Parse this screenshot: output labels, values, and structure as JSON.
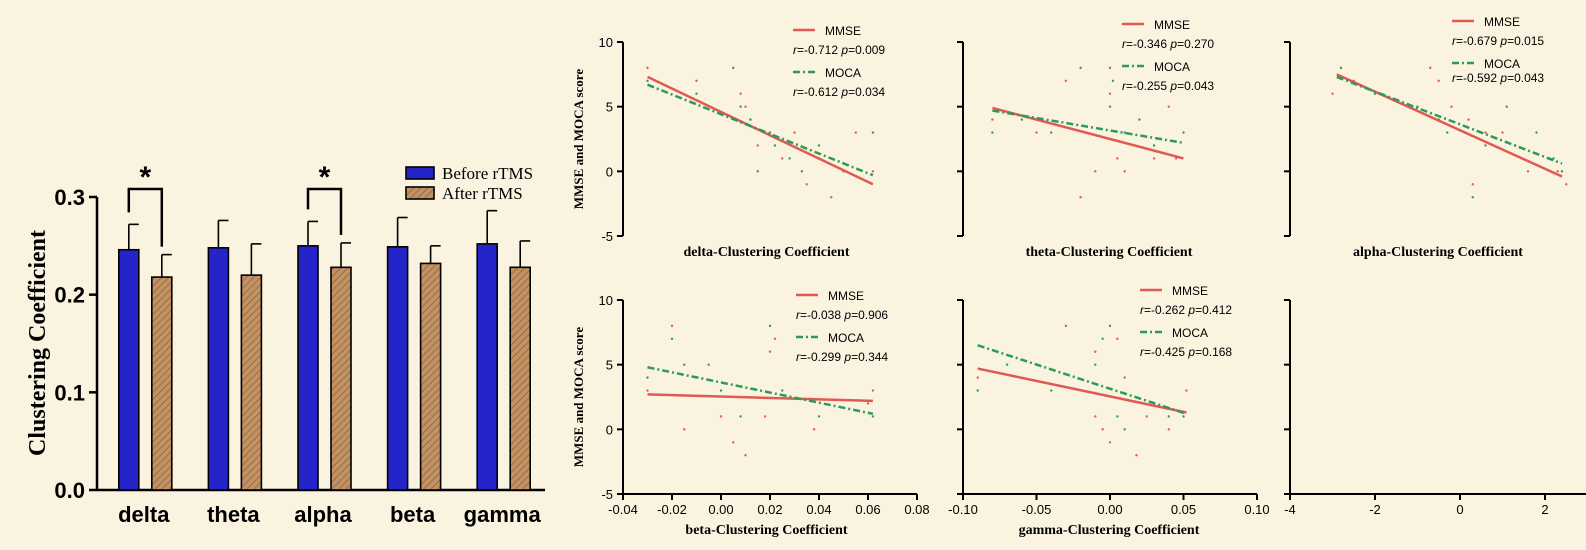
{
  "colors": {
    "background": "#faf3e0",
    "before_bar": "#2424c8",
    "after_bar": "#c8915a",
    "mmse_line": "#e05a52",
    "moca_line": "#2e9a5a",
    "axis": "#000000"
  },
  "chart_data": [
    {
      "id": "bar",
      "type": "bar",
      "categories": [
        "delta",
        "theta",
        "alpha",
        "beta",
        "gamma"
      ],
      "series": [
        {
          "name": "Before rTMS",
          "values": [
            0.246,
            0.248,
            0.25,
            0.249,
            0.252
          ],
          "errors": [
            0.026,
            0.028,
            0.025,
            0.03,
            0.034
          ]
        },
        {
          "name": "After rTMS",
          "values": [
            0.218,
            0.22,
            0.228,
            0.232,
            0.228
          ],
          "errors": [
            0.023,
            0.032,
            0.025,
            0.018,
            0.027
          ]
        }
      ],
      "ylabel": "Clustering Coefficient",
      "ylim": [
        0,
        0.3
      ],
      "yticks": [
        "0.0",
        "0.1",
        "0.2",
        "0.3"
      ],
      "significance": [
        {
          "category": "delta",
          "label": "*"
        },
        {
          "category": "alpha",
          "label": "*"
        }
      ],
      "legend_placement": "top-right"
    },
    {
      "id": "s1",
      "type": "scatter",
      "xlabel": "delta-Clustering Coefficient",
      "ylabel": "MMSE and MOCA score",
      "xlim": [
        -0.04,
        0.08
      ],
      "ylim": [
        -5,
        10
      ],
      "yticks": [
        "-5",
        "0",
        "5",
        "10"
      ],
      "xticks": [],
      "mmse": {
        "label": "MMSE",
        "r": "-0.712",
        "p": "0.009",
        "line": [
          [
            -0.03,
            7.3
          ],
          [
            0.062,
            -1.0
          ]
        ],
        "points": [
          [
            -0.03,
            8
          ],
          [
            -0.01,
            7
          ],
          [
            0.008,
            6
          ],
          [
            0.01,
            5
          ],
          [
            0.012,
            4
          ],
          [
            0.015,
            2
          ],
          [
            0.02,
            3
          ],
          [
            0.025,
            1
          ],
          [
            0.03,
            3
          ],
          [
            0.035,
            -1
          ],
          [
            0.04,
            1
          ],
          [
            0.045,
            -2
          ],
          [
            0.055,
            3
          ],
          [
            0.062,
            0
          ]
        ]
      },
      "moca": {
        "label": "MOCA",
        "r": "-0.612",
        "p": "0.034",
        "line": [
          [
            -0.03,
            6.7
          ],
          [
            0.062,
            -0.3
          ]
        ],
        "points": [
          [
            -0.03,
            7
          ],
          [
            -0.01,
            6
          ],
          [
            0.005,
            8
          ],
          [
            0.008,
            5
          ],
          [
            0.012,
            4
          ],
          [
            0.015,
            0
          ],
          [
            0.022,
            2
          ],
          [
            0.028,
            1
          ],
          [
            0.033,
            0
          ],
          [
            0.04,
            2
          ],
          [
            0.05,
            0
          ],
          [
            0.062,
            3
          ]
        ]
      },
      "legend_placement": "top-right"
    },
    {
      "id": "s2",
      "type": "scatter",
      "xlabel": "theta-Clustering Coefficient",
      "ylabel": "",
      "xlim": [
        -0.1,
        0.1
      ],
      "ylim": [
        -5,
        10
      ],
      "yticks": [],
      "xticks": [],
      "mmse": {
        "label": "MMSE",
        "r": "-0.346",
        "p": "0.270",
        "line": [
          [
            -0.08,
            4.9
          ],
          [
            0.05,
            1.0
          ]
        ],
        "points": [
          [
            -0.08,
            4
          ],
          [
            -0.05,
            3
          ],
          [
            -0.03,
            7
          ],
          [
            -0.02,
            -2
          ],
          [
            -0.01,
            0
          ],
          [
            0.0,
            8
          ],
          [
            0.0,
            6
          ],
          [
            0.005,
            1
          ],
          [
            0.01,
            0
          ],
          [
            0.03,
            1
          ],
          [
            0.04,
            5
          ],
          [
            0.045,
            1
          ]
        ]
      },
      "moca": {
        "label": "MOCA",
        "r": "-0.255",
        "p": "0.043",
        "line": [
          [
            -0.08,
            4.7
          ],
          [
            0.05,
            2.2
          ]
        ],
        "points": [
          [
            -0.08,
            3
          ],
          [
            -0.06,
            4
          ],
          [
            -0.04,
            3
          ],
          [
            -0.02,
            8
          ],
          [
            0.0,
            5
          ],
          [
            0.002,
            7
          ],
          [
            0.01,
            3
          ],
          [
            0.02,
            4
          ],
          [
            0.03,
            2
          ],
          [
            0.05,
            3
          ]
        ]
      },
      "legend_placement": "top-right"
    },
    {
      "id": "s3",
      "type": "scatter",
      "xlabel": "alpha-Clustering Coefficient",
      "ylabel": "",
      "xlim": [
        -4,
        4
      ],
      "ylim": [
        -5,
        10
      ],
      "yticks": [],
      "xticks": [],
      "mmse": {
        "label": "MMSE",
        "r": "-0.679",
        "p": "0.015",
        "line": [
          [
            -2.9,
            7.5
          ],
          [
            2.4,
            -0.4
          ]
        ],
        "points": [
          [
            -3.0,
            6
          ],
          [
            -2.5,
            7
          ],
          [
            -0.7,
            8
          ],
          [
            -0.5,
            7
          ],
          [
            -0.2,
            5
          ],
          [
            0.2,
            4
          ],
          [
            0.3,
            -1
          ],
          [
            0.6,
            3
          ],
          [
            1.0,
            3
          ],
          [
            1.3,
            2
          ],
          [
            1.6,
            0
          ],
          [
            2.1,
            1
          ],
          [
            2.3,
            0
          ],
          [
            2.5,
            -1
          ]
        ]
      },
      "moca": {
        "label": "MOCA",
        "r": "-0.592",
        "p": "0.043",
        "line": [
          [
            -2.9,
            7.3
          ],
          [
            2.4,
            0.6
          ]
        ],
        "points": [
          [
            -2.8,
            8
          ],
          [
            -2.0,
            6
          ],
          [
            -1.0,
            5
          ],
          [
            -0.5,
            4
          ],
          [
            -0.3,
            3
          ],
          [
            0.3,
            -2
          ],
          [
            0.6,
            2
          ],
          [
            1.1,
            5
          ],
          [
            1.8,
            3
          ],
          [
            2.2,
            1
          ],
          [
            2.4,
            0
          ]
        ]
      },
      "legend_placement": "top-right"
    },
    {
      "id": "s4",
      "type": "scatter",
      "xlabel": "beta-Clustering Coefficient",
      "ylabel": "MMSE and MOCA score",
      "xlim": [
        -0.04,
        0.08
      ],
      "ylim": [
        -5,
        10
      ],
      "yticks": [
        "-5",
        "0",
        "5",
        "10"
      ],
      "xticks": [
        "-0.04",
        "-0.02",
        "0.00",
        "0.02",
        "0.04",
        "0.06",
        "0.08"
      ],
      "mmse": {
        "label": "MMSE",
        "r": "-0.038",
        "p": "0.906",
        "line": [
          [
            -0.03,
            2.7
          ],
          [
            0.062,
            2.2
          ]
        ],
        "points": [
          [
            -0.03,
            3
          ],
          [
            -0.02,
            8
          ],
          [
            -0.015,
            0
          ],
          [
            0.0,
            1
          ],
          [
            0.005,
            -1
          ],
          [
            0.01,
            -2
          ],
          [
            0.018,
            1
          ],
          [
            0.02,
            6
          ],
          [
            0.022,
            7
          ],
          [
            0.038,
            0
          ],
          [
            0.06,
            2
          ],
          [
            0.062,
            3
          ]
        ]
      },
      "moca": {
        "label": "MOCA",
        "r": "-0.299",
        "p": "0.344",
        "line": [
          [
            -0.03,
            4.8
          ],
          [
            0.062,
            1.2
          ]
        ],
        "points": [
          [
            -0.03,
            4
          ],
          [
            -0.02,
            7
          ],
          [
            -0.015,
            5
          ],
          [
            -0.005,
            5
          ],
          [
            0.0,
            3
          ],
          [
            0.008,
            1
          ],
          [
            0.02,
            8
          ],
          [
            0.025,
            3
          ],
          [
            0.04,
            1
          ],
          [
            0.062,
            1
          ]
        ]
      },
      "legend_placement": "top-right"
    },
    {
      "id": "s5",
      "type": "scatter",
      "xlabel": "gamma-Clustering Coefficient",
      "ylabel": "",
      "xlim": [
        -0.1,
        0.1
      ],
      "ylim": [
        -5,
        10
      ],
      "yticks": [],
      "xticks": [
        "-0.10",
        "-0.05",
        "0.00",
        "0.05",
        "0.10"
      ],
      "mmse": {
        "label": "MMSE",
        "r": "-0.262",
        "p": "0.412",
        "line": [
          [
            -0.09,
            4.7
          ],
          [
            0.052,
            1.3
          ]
        ],
        "points": [
          [
            -0.09,
            4
          ],
          [
            -0.03,
            8
          ],
          [
            -0.01,
            6
          ],
          [
            -0.01,
            1
          ],
          [
            -0.005,
            0
          ],
          [
            0.0,
            -1
          ],
          [
            0.005,
            7
          ],
          [
            0.01,
            4
          ],
          [
            0.018,
            -2
          ],
          [
            0.025,
            1
          ],
          [
            0.04,
            0
          ],
          [
            0.052,
            3
          ]
        ]
      },
      "moca": {
        "label": "MOCA",
        "r": "-0.425",
        "p": "0.168",
        "line": [
          [
            -0.09,
            6.5
          ],
          [
            0.052,
            1.2
          ]
        ],
        "points": [
          [
            -0.09,
            3
          ],
          [
            -0.07,
            5
          ],
          [
            -0.04,
            3
          ],
          [
            -0.01,
            5
          ],
          [
            -0.005,
            7
          ],
          [
            0.0,
            8
          ],
          [
            0.005,
            1
          ],
          [
            0.01,
            0
          ],
          [
            0.04,
            1
          ],
          [
            0.05,
            1
          ]
        ]
      },
      "legend_placement": "top-right"
    },
    {
      "id": "s6",
      "type": "scatter",
      "xlabel": "",
      "ylabel": "",
      "xlim": [
        -4,
        4
      ],
      "ylim": [
        -5,
        10
      ],
      "yticks": [],
      "xticks": [
        "-4",
        "-2",
        "0",
        "2"
      ]
    }
  ]
}
